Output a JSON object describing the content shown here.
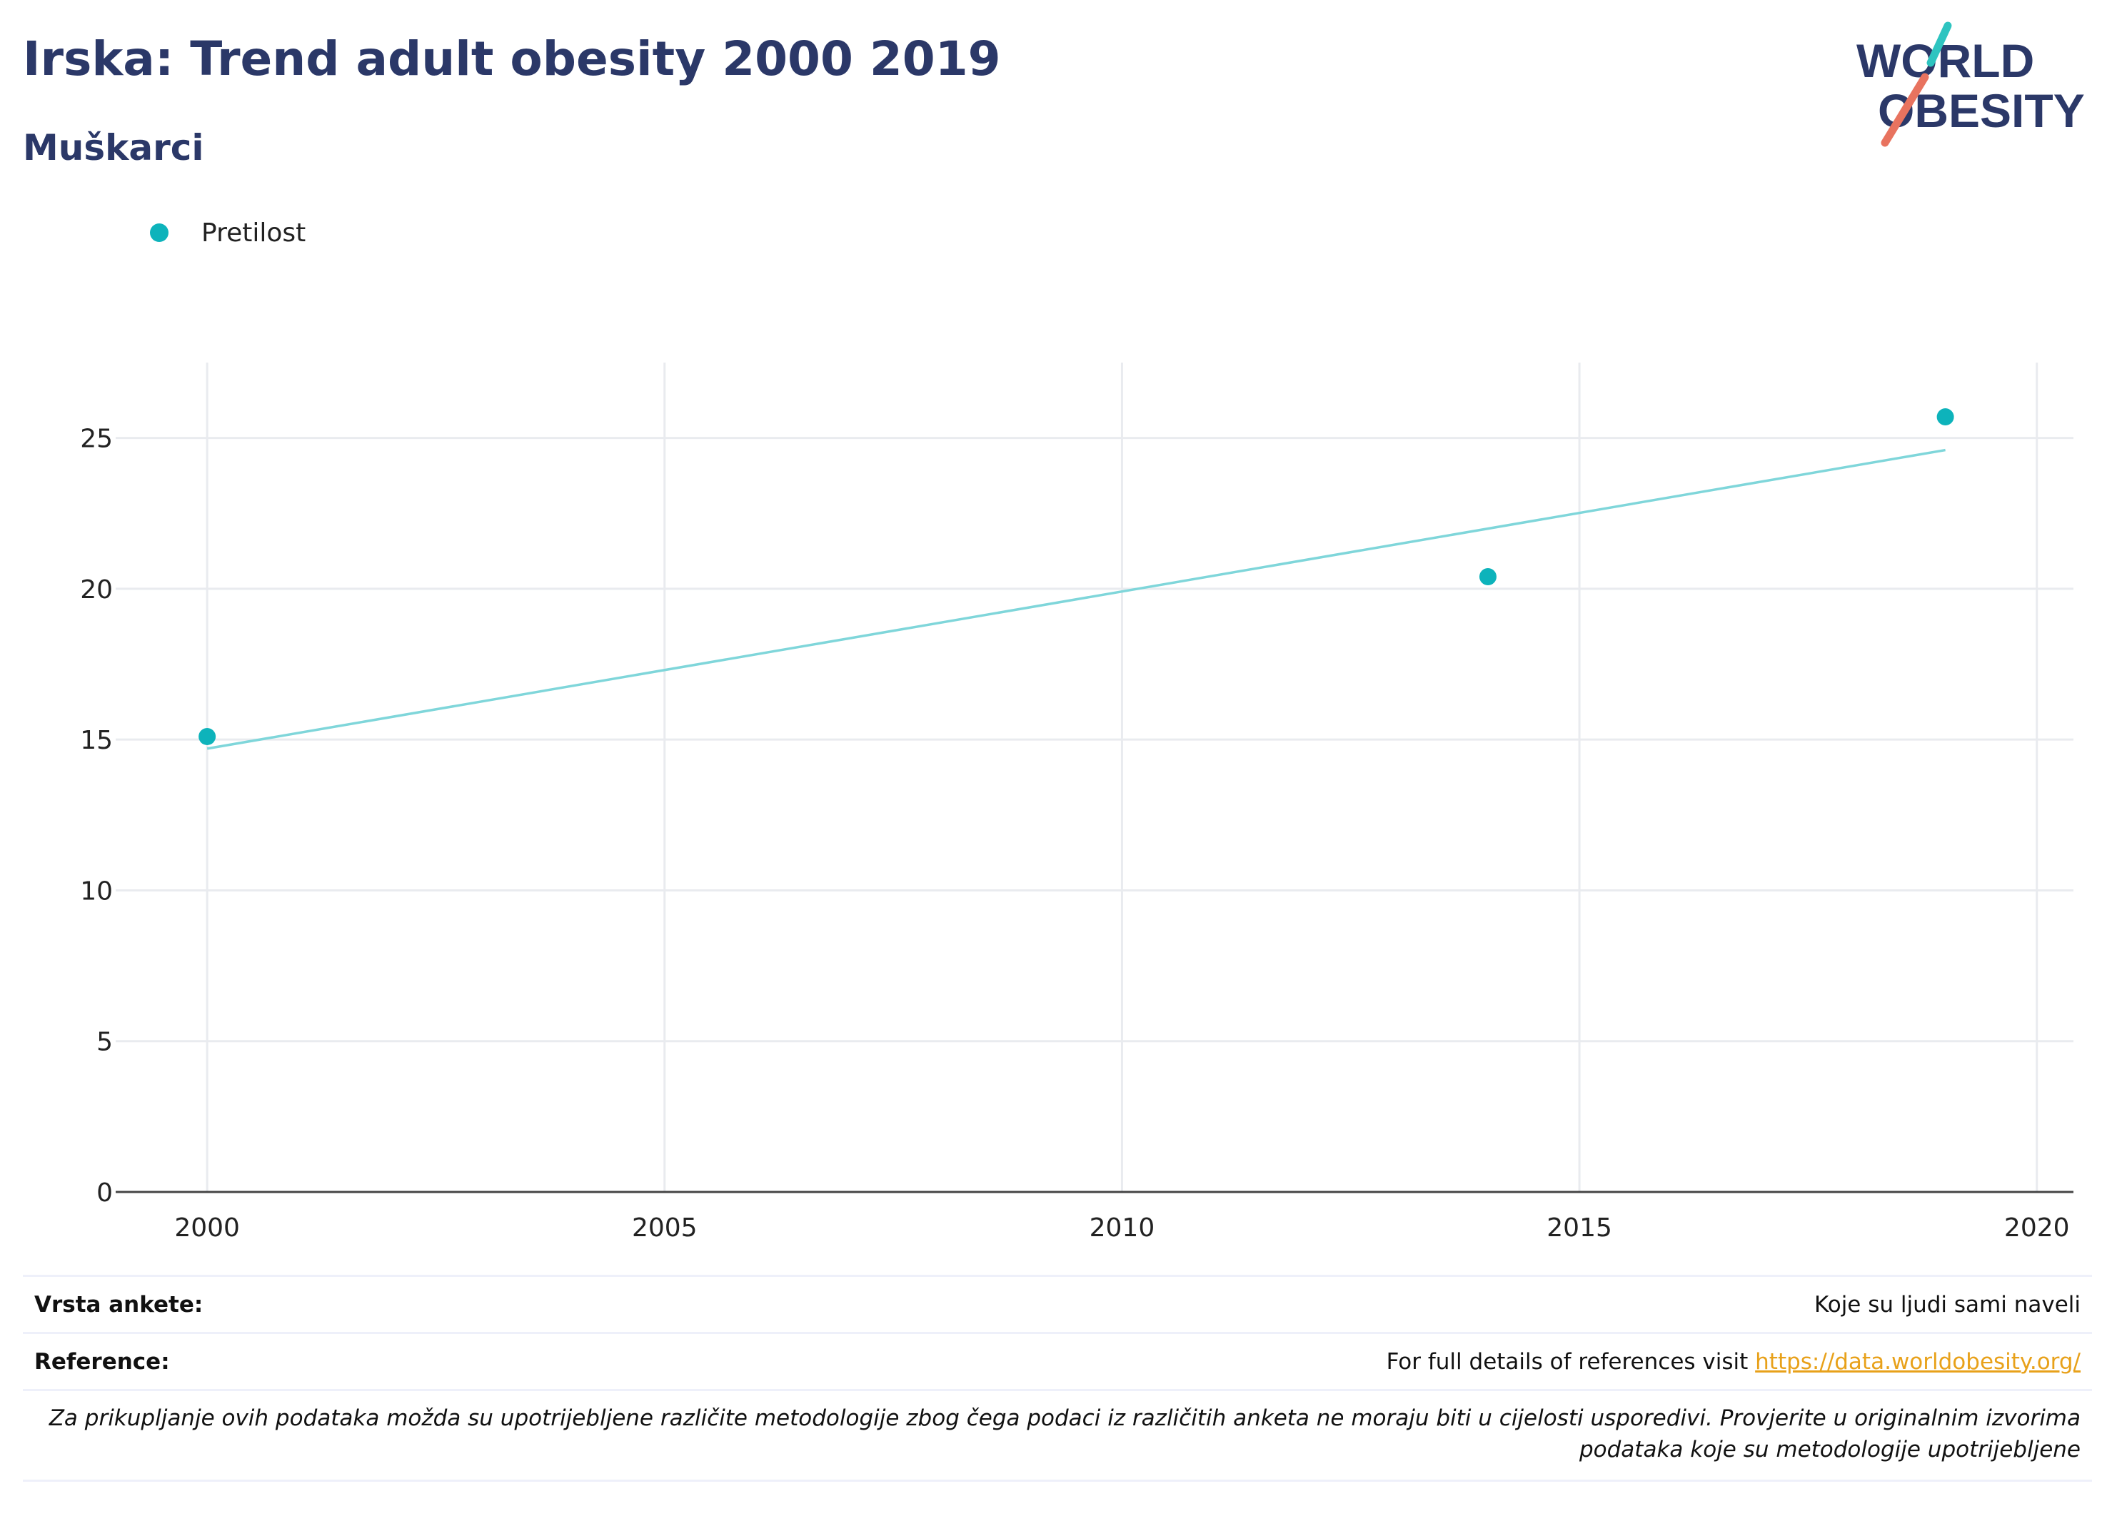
{
  "header": {
    "title": "Irska: Trend adult obesity 2000 2019",
    "subtitle": "Muškarci"
  },
  "logo": {
    "line1": "WORLD",
    "line2": "OBESITY",
    "accent_teal": "#2ec4c0",
    "accent_coral": "#e8735f",
    "text_color": "#2b3868"
  },
  "legend": {
    "items": [
      {
        "label": "Pretilost",
        "color": "#0db3bb"
      }
    ]
  },
  "chart_data": {
    "type": "scatter",
    "title": "Irska: Trend adult obesity 2000 2019",
    "subtitle": "Muškarci",
    "xlabel": "",
    "ylabel": "",
    "xlim": [
      1999.0,
      2020.4
    ],
    "ylim": [
      0,
      27.5
    ],
    "x_ticks": [
      2000,
      2005,
      2010,
      2015,
      2020
    ],
    "y_ticks": [
      0,
      5,
      10,
      15,
      20,
      25
    ],
    "grid": true,
    "legend_position": "top-left",
    "series": [
      {
        "name": "Pretilost",
        "color": "#0db3bb",
        "x": [
          2000,
          2014,
          2019
        ],
        "y": [
          15.1,
          20.4,
          25.7
        ]
      }
    ],
    "trendline": {
      "color": "#7fd6da",
      "x": [
        2000,
        2019
      ],
      "y": [
        14.7,
        24.6
      ]
    }
  },
  "info": {
    "survey_label": "Vrsta ankete:",
    "survey_value": "Koje su ljudi sami naveli",
    "reference_label": "Reference:",
    "reference_text": "For full details of references visit ",
    "reference_link": "https://data.worldobesity.org/",
    "note": "Za prikupljanje ovih podataka možda su upotrijebljene različite metodologije zbog čega podaci iz različitih anketa ne moraju biti u cijelosti usporedivi. Provjerite u originalnim izvorima podataka koje su metodologije upotrijebljene"
  }
}
